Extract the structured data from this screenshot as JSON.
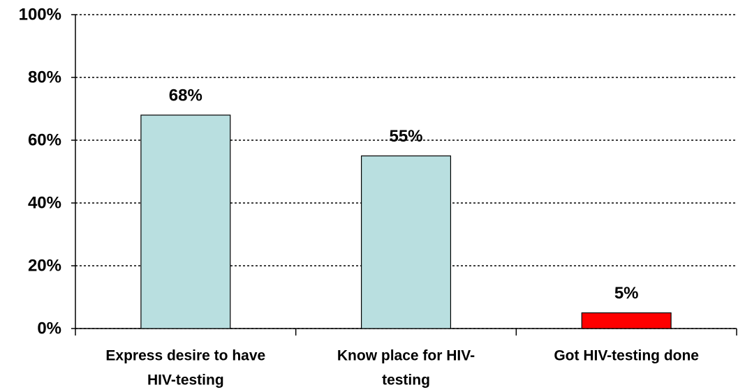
{
  "chart_data": {
    "type": "bar",
    "categories": [
      [
        "Express desire to have",
        "HIV-testing"
      ],
      [
        "Know place for HIV-",
        "testing"
      ],
      [
        "Got HIV-testing done"
      ]
    ],
    "values": [
      68,
      55,
      5
    ],
    "value_labels": [
      "68%",
      "55%",
      "5%"
    ],
    "colors": [
      "#b9dfe0",
      "#b9dfe0",
      "#ff0000"
    ],
    "ylim": [
      0,
      100
    ],
    "yticks": [
      {
        "value": 0,
        "label": "0%"
      },
      {
        "value": 20,
        "label": "20%"
      },
      {
        "value": 40,
        "label": "40%"
      },
      {
        "value": 60,
        "label": "60%"
      },
      {
        "value": 80,
        "label": "80%"
      },
      {
        "value": 100,
        "label": "100%"
      }
    ],
    "grid": true
  }
}
